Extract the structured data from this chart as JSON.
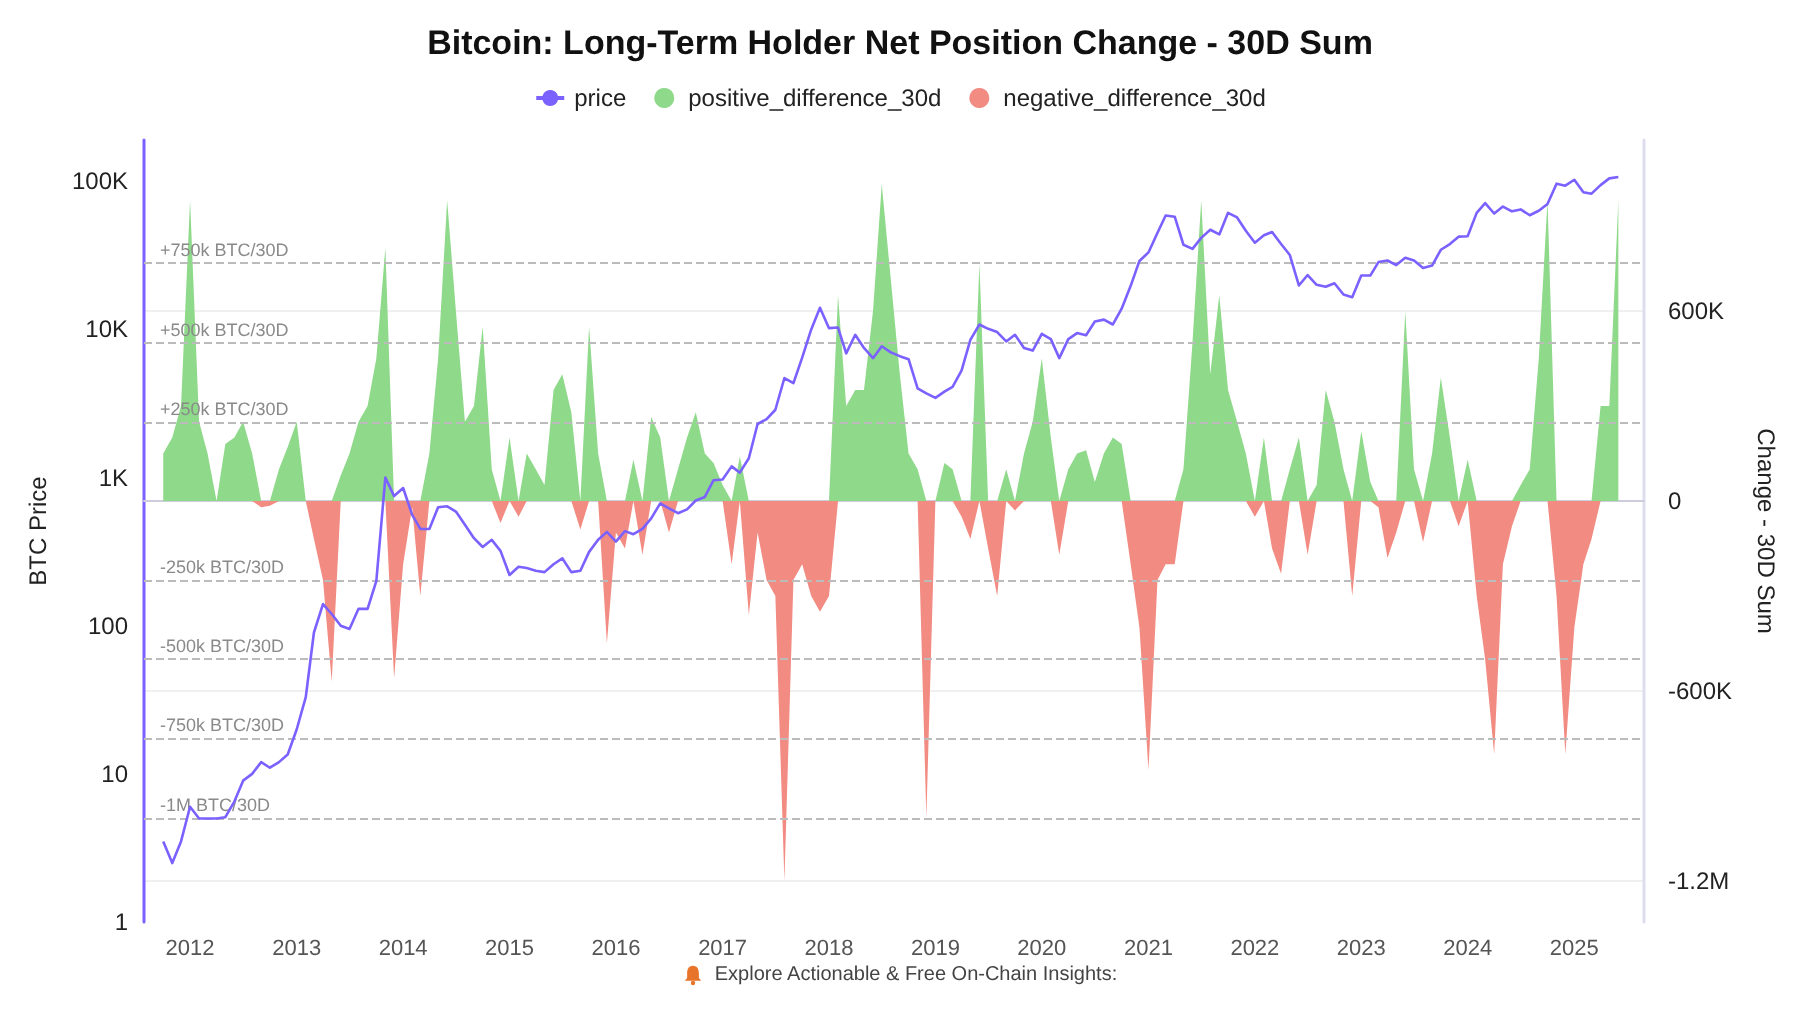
{
  "chart_data": {
    "type": "area",
    "title": "Bitcoin: Long-Term Holder Net Position Change - 30D Sum",
    "ylabel": "BTC Price",
    "y2label": "Change - 30D Sum",
    "annotations": [
      "Explore Actionable & Free On-Chain Insights:"
    ],
    "x": [
      "2011-10",
      "2011-11",
      "2011-12",
      "2012-01",
      "2012-02",
      "2012-03",
      "2012-04",
      "2012-05",
      "2012-06",
      "2012-07",
      "2012-08",
      "2012-09",
      "2012-10",
      "2012-11",
      "2012-12",
      "2013-01",
      "2013-02",
      "2013-03",
      "2013-04",
      "2013-05",
      "2013-06",
      "2013-07",
      "2013-08",
      "2013-09",
      "2013-10",
      "2013-11",
      "2013-12",
      "2014-01",
      "2014-02",
      "2014-03",
      "2014-04",
      "2014-05",
      "2014-06",
      "2014-07",
      "2014-08",
      "2014-09",
      "2014-10",
      "2014-11",
      "2014-12",
      "2015-01",
      "2015-02",
      "2015-03",
      "2015-04",
      "2015-05",
      "2015-06",
      "2015-07",
      "2015-08",
      "2015-09",
      "2015-10",
      "2015-11",
      "2015-12",
      "2016-01",
      "2016-02",
      "2016-03",
      "2016-04",
      "2016-05",
      "2016-06",
      "2016-07",
      "2016-08",
      "2016-09",
      "2016-10",
      "2016-11",
      "2016-12",
      "2017-01",
      "2017-02",
      "2017-03",
      "2017-04",
      "2017-05",
      "2017-06",
      "2017-07",
      "2017-08",
      "2017-09",
      "2017-10",
      "2017-11",
      "2017-12",
      "2018-01",
      "2018-02",
      "2018-03",
      "2018-04",
      "2018-05",
      "2018-06",
      "2018-07",
      "2018-08",
      "2018-09",
      "2018-10",
      "2018-11",
      "2018-12",
      "2019-01",
      "2019-02",
      "2019-03",
      "2019-04",
      "2019-05",
      "2019-06",
      "2019-07",
      "2019-08",
      "2019-09",
      "2019-10",
      "2019-11",
      "2019-12",
      "2020-01",
      "2020-02",
      "2020-03",
      "2020-04",
      "2020-05",
      "2020-06",
      "2020-07",
      "2020-08",
      "2020-09",
      "2020-10",
      "2020-11",
      "2020-12",
      "2021-01",
      "2021-02",
      "2021-03",
      "2021-04",
      "2021-05",
      "2021-06",
      "2021-07",
      "2021-08",
      "2021-09",
      "2021-10",
      "2021-11",
      "2021-12",
      "2022-01",
      "2022-02",
      "2022-03",
      "2022-04",
      "2022-05",
      "2022-06",
      "2022-07",
      "2022-08",
      "2022-09",
      "2022-10",
      "2022-11",
      "2022-12",
      "2023-01",
      "2023-02",
      "2023-03",
      "2023-04",
      "2023-05",
      "2023-06",
      "2023-07",
      "2023-08",
      "2023-09",
      "2023-10",
      "2023-11",
      "2023-12",
      "2024-01",
      "2024-02",
      "2024-03",
      "2024-04",
      "2024-05",
      "2024-06",
      "2024-07",
      "2024-08",
      "2024-09",
      "2024-10",
      "2024-11",
      "2024-12",
      "2025-01",
      "2025-02",
      "2025-03",
      "2025-04",
      "2025-05",
      "2025-06"
    ],
    "series": [
      {
        "name": "price",
        "type": "line",
        "color": "#7b61ff",
        "values": [
          3.5,
          2.5,
          3.5,
          6,
          5,
          5,
          5,
          5.1,
          6.5,
          9,
          10,
          12,
          11,
          12,
          13.5,
          20,
          33,
          90,
          140,
          120,
          100,
          95,
          130,
          130,
          200,
          1000,
          750,
          850,
          560,
          450,
          450,
          630,
          640,
          590,
          480,
          390,
          340,
          380,
          320,
          220,
          250,
          245,
          235,
          230,
          260,
          285,
          230,
          235,
          315,
          380,
          430,
          370,
          435,
          415,
          450,
          530,
          670,
          620,
          575,
          610,
          700,
          740,
          960,
          970,
          1190,
          1080,
          1350,
          2300,
          2480,
          2870,
          4700,
          4340,
          6450,
          10000,
          14000,
          10200,
          10300,
          6900,
          9200,
          7500,
          6400,
          7700,
          7000,
          6600,
          6300,
          4000,
          3700,
          3450,
          3800,
          4100,
          5300,
          8500,
          10800,
          10100,
          9600,
          8300,
          9200,
          7500,
          7200,
          9350,
          8600,
          6400,
          8600,
          9450,
          9140,
          11300,
          11650,
          10800,
          13800,
          19700,
          29000,
          33100,
          45000,
          58800,
          57700,
          37300,
          35000,
          41500,
          47100,
          43800,
          61300,
          57000,
          46300,
          38500,
          43200,
          45500,
          37700,
          31800,
          19800,
          23300,
          20000,
          19400,
          20500,
          17200,
          16500,
          23100,
          23100,
          28500,
          29200,
          27200,
          30500,
          29200,
          26000,
          27000,
          34500,
          37700,
          42300,
          42600,
          61200,
          71300,
          60600,
          67500,
          62700,
          64600,
          59000,
          63300,
          70300,
          96400,
          93400,
          102400,
          84300,
          82500,
          94200,
          104600,
          107000
        ]
      },
      {
        "name": "positive_difference_30d",
        "axis": "y2",
        "color": "#8fd98a",
        "values": [
          150000,
          200000,
          300000,
          950000,
          250000,
          150000,
          0,
          180000,
          200000,
          250000,
          150000,
          0,
          0,
          100000,
          170000,
          250000,
          0,
          0,
          0,
          0,
          80000,
          150000,
          250000,
          300000,
          450000,
          800000,
          0,
          0,
          0,
          0,
          150000,
          450000,
          950000,
          600000,
          250000,
          300000,
          550000,
          100000,
          0,
          200000,
          0,
          150000,
          100000,
          50000,
          350000,
          400000,
          280000,
          0,
          550000,
          150000,
          0,
          0,
          0,
          130000,
          0,
          265000,
          200000,
          0,
          100000,
          200000,
          280000,
          150000,
          120000,
          50000,
          0,
          140000,
          0,
          0,
          0,
          0,
          0,
          0,
          0,
          0,
          0,
          0,
          650000,
          300000,
          350000,
          350000,
          600000,
          1000000,
          700000,
          400000,
          150000,
          100000,
          0,
          0,
          120000,
          100000,
          0,
          0,
          750000,
          0,
          0,
          100000,
          0,
          150000,
          250000,
          450000,
          200000,
          0,
          100000,
          150000,
          160000,
          60000,
          150000,
          200000,
          180000,
          0,
          0,
          0,
          0,
          0,
          0,
          100000,
          500000,
          950000,
          400000,
          650000,
          350000,
          250000,
          150000,
          0,
          200000,
          0,
          0,
          100000,
          200000,
          0,
          50000,
          350000,
          250000,
          100000,
          0,
          220000,
          60000,
          0,
          0,
          0,
          600000,
          100000,
          0,
          150000,
          390000,
          200000,
          0,
          130000,
          0,
          0,
          0,
          0,
          0,
          50000,
          100000,
          450000,
          950000,
          0,
          0,
          0,
          0,
          0,
          300000,
          300000,
          950000
        ]
      },
      {
        "name": "negative_difference_30d",
        "axis": "y2",
        "color": "#f28b82",
        "values": [
          0,
          0,
          0,
          0,
          0,
          0,
          0,
          0,
          0,
          0,
          0,
          -20000,
          -15000,
          0,
          0,
          0,
          0,
          -120000,
          -250000,
          -570000,
          0,
          0,
          0,
          0,
          0,
          0,
          -560000,
          -200000,
          -20000,
          -300000,
          0,
          0,
          0,
          0,
          0,
          0,
          0,
          0,
          -70000,
          0,
          -50000,
          0,
          0,
          0,
          0,
          0,
          0,
          -90000,
          0,
          0,
          -450000,
          -100000,
          -150000,
          0,
          -170000,
          0,
          0,
          -100000,
          0,
          0,
          0,
          0,
          0,
          0,
          -200000,
          0,
          -360000,
          -100000,
          -250000,
          -300000,
          -1200000,
          -250000,
          -200000,
          -300000,
          -350000,
          -300000,
          0,
          0,
          0,
          0,
          0,
          0,
          0,
          0,
          0,
          0,
          -1000000,
          0,
          0,
          0,
          -50000,
          -120000,
          0,
          -150000,
          -300000,
          0,
          -30000,
          0,
          0,
          0,
          0,
          -170000,
          0,
          0,
          0,
          0,
          0,
          0,
          0,
          -200000,
          -400000,
          -850000,
          -250000,
          -200000,
          -200000,
          0,
          0,
          0,
          0,
          0,
          0,
          0,
          0,
          -50000,
          0,
          -150000,
          -230000,
          0,
          0,
          -170000,
          0,
          0,
          0,
          0,
          -300000,
          0,
          0,
          -20000,
          -180000,
          -100000,
          0,
          0,
          -130000,
          0,
          0,
          0,
          -80000,
          0,
          -300000,
          -500000,
          -800000,
          -200000,
          -80000,
          0,
          0,
          0,
          0,
          -300000,
          -800000,
          -400000,
          -200000,
          -120000,
          0,
          0,
          0
        ]
      }
    ],
    "xlim": [
      "2011-07-27",
      "2025-08-28"
    ],
    "xticks": [
      {
        "value": "2012",
        "label": "2012"
      },
      {
        "value": "2013",
        "label": "2013"
      },
      {
        "value": "2014",
        "label": "2014"
      },
      {
        "value": "2015",
        "label": "2015"
      },
      {
        "value": "2016",
        "label": "2016"
      },
      {
        "value": "2017",
        "label": "2017"
      },
      {
        "value": "2018",
        "label": "2018"
      },
      {
        "value": "2019",
        "label": "2019"
      },
      {
        "value": "2020",
        "label": "2020"
      },
      {
        "value": "2021",
        "label": "2021"
      },
      {
        "value": "2022",
        "label": "2022"
      },
      {
        "value": "2023",
        "label": "2023"
      },
      {
        "value": "2024",
        "label": "2024"
      },
      {
        "value": "2025",
        "label": "2025"
      }
    ],
    "log": "y",
    "ylim": [
      1,
      190000
    ],
    "yticks": [
      1,
      10,
      100,
      {
        "value": 1000,
        "label": "1K"
      },
      {
        "value": 10000,
        "label": "10K"
      },
      {
        "value": 100000,
        "label": "100K"
      }
    ],
    "y2lim": [
      -1330000,
      1140000
    ],
    "y2ticks": [
      {
        "value": -1200000,
        "label": "-1.2M"
      },
      {
        "value": -600000,
        "label": "-600K"
      },
      0,
      {
        "value": 600000,
        "label": "600K"
      }
    ],
    "ref_lines": [
      {
        "axis": "y2",
        "value": 750000,
        "label": "+750k BTC/30D",
        "line_style": "dashed"
      },
      {
        "axis": "y2",
        "value": 500000,
        "label": "+500k BTC/30D",
        "line_style": "dashed"
      },
      {
        "axis": "y2",
        "value": 250000,
        "label": "+250k BTC/30D",
        "line_style": "dashed"
      },
      {
        "axis": "y2",
        "value": -250000,
        "label": "-250k BTC/30D",
        "line_style": "dashed"
      },
      {
        "axis": "y2",
        "value": -500000,
        "label": "-500k BTC/30D",
        "line_style": "dashed"
      },
      {
        "axis": "y2",
        "value": -750000,
        "label": "-750k BTC/30D",
        "line_style": "dashed"
      },
      {
        "axis": "y2",
        "value": -1000000,
        "label": "-1M BTC/30D",
        "line_style": "dashed"
      }
    ],
    "grid": "y",
    "legend": "top"
  }
}
